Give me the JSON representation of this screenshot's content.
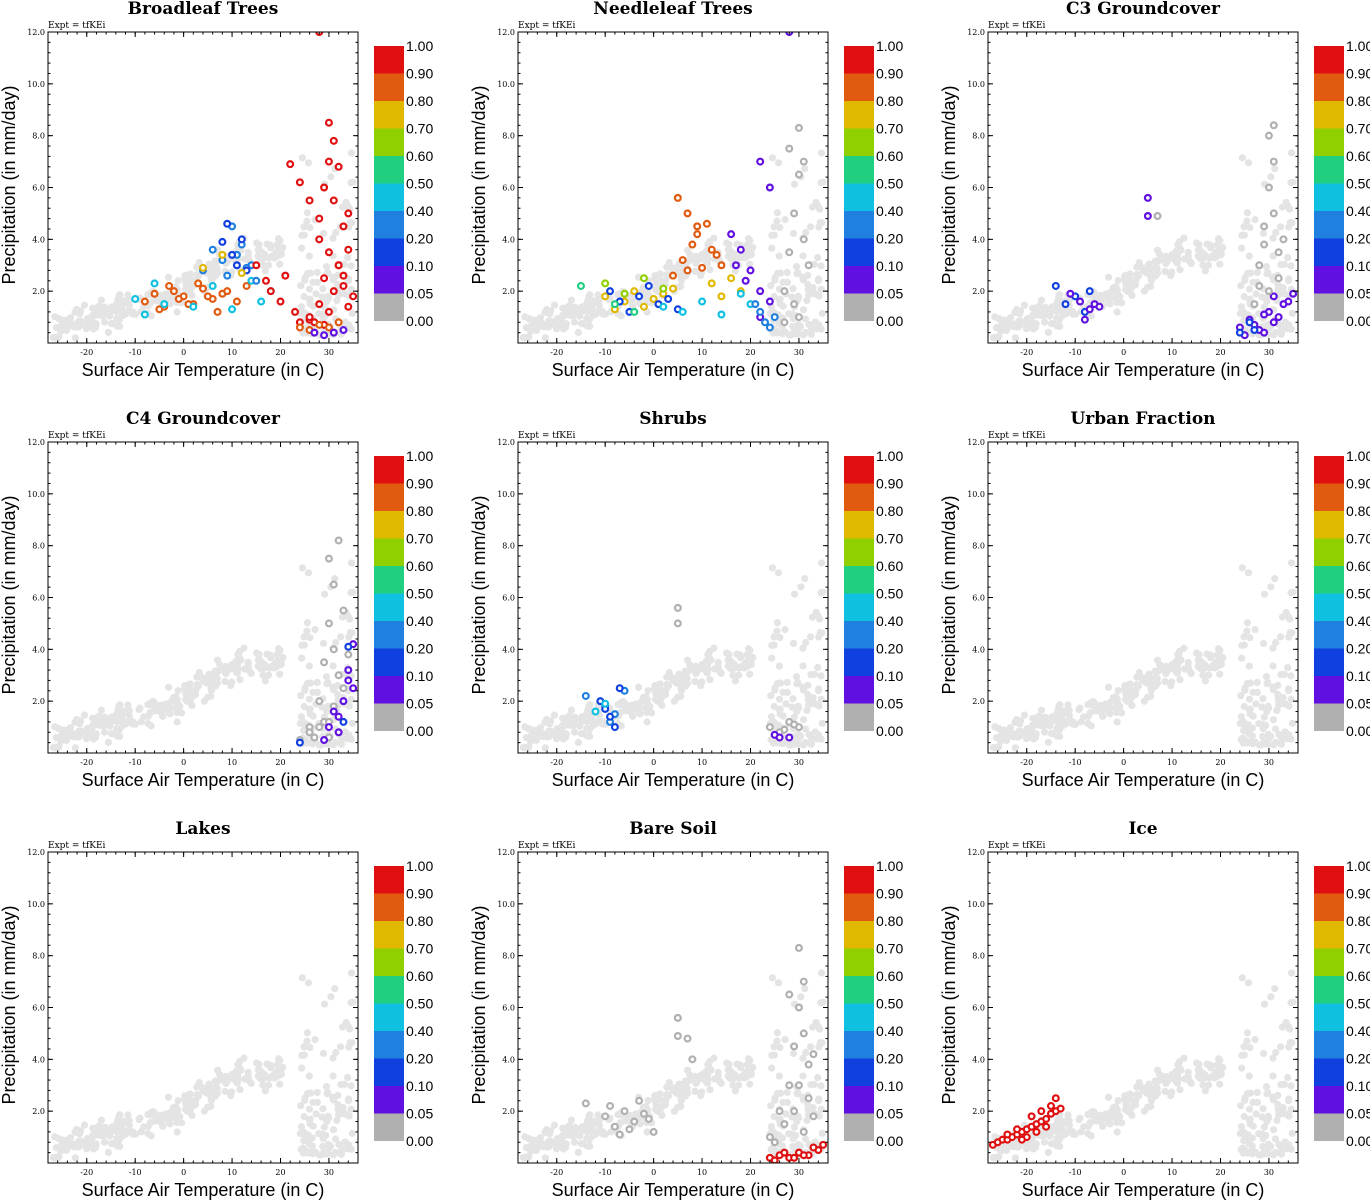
{
  "chart_data": {
    "type": "scatter",
    "expt_label": "Expt = tfKEi",
    "xlabel": "Surface Air Temperature (in C)",
    "ylabel": "Precipitation (in mm/day)",
    "xlim": [
      -28,
      36
    ],
    "ylim": [
      0,
      12
    ],
    "xticks": [
      -20,
      -10,
      0,
      10,
      20,
      30
    ],
    "yticks": [
      "2.0",
      "4.0",
      "6.0",
      "8.0",
      "10.0",
      "12.0"
    ],
    "colorbar": {
      "labels": [
        "1.00",
        "0.90",
        "0.80",
        "0.70",
        "0.60",
        "0.50",
        "0.40",
        "0.20",
        "0.10",
        "0.05",
        "0.00"
      ],
      "colors": [
        "#e01010",
        "#e05a10",
        "#e0b800",
        "#90d000",
        "#20d080",
        "#10c0e0",
        "#2080e0",
        "#1040e0",
        "#6010e0",
        "#b0b0b0",
        "#ffffff"
      ]
    },
    "background_color": "#e4e4e4",
    "panels": [
      {
        "title": "Broadleaf Trees",
        "points": [
          {
            "x": [
              -8,
              -6,
              -4,
              -2,
              0,
              2,
              4,
              6,
              8
            ],
            "y": [
              1.6,
              1.9,
              1.4,
              2.0,
              1.8,
              1.5,
              2.1,
              1.7,
              1.9
            ],
            "color": "#e05a10"
          },
          {
            "x": [
              -5,
              -3,
              -1,
              1,
              3,
              5,
              7,
              9,
              11,
              13
            ],
            "y": [
              1.3,
              2.2,
              1.7,
              1.5,
              2.3,
              1.8,
              1.2,
              2.0,
              1.6,
              2.2
            ],
            "color": "#e05a10"
          },
          {
            "x": [
              -10,
              -8,
              -6,
              -4,
              2,
              6,
              10,
              14,
              16,
              18
            ],
            "y": [
              1.7,
              1.1,
              2.3,
              1.5,
              1.4,
              2.2,
              1.3,
              2.4,
              1.6,
              2.0
            ],
            "color": "#10c0e0"
          },
          {
            "x": [
              6,
              8,
              10,
              12,
              14,
              4,
              9,
              11,
              13,
              15
            ],
            "y": [
              3.6,
              3.2,
              4.5,
              3.8,
              3.0,
              2.8,
              2.6,
              3.4,
              2.9,
              2.4
            ],
            "color": "#2080e0"
          },
          {
            "x": [
              8,
              9,
              10,
              11,
              12,
              13
            ],
            "y": [
              3.9,
              4.6,
              3.4,
              3.0,
              4.0,
              2.8
            ],
            "color": "#1040e0"
          },
          {
            "x": [
              15,
              17,
              18,
              20,
              21,
              23,
              24,
              26
            ],
            "y": [
              3.0,
              2.4,
              2.0,
              1.6,
              2.6,
              1.2,
              0.8,
              0.9
            ],
            "color": "#e01010"
          },
          {
            "x": [
              28,
              29,
              30,
              30,
              31,
              31,
              32,
              32,
              33,
              33,
              34,
              34,
              35
            ],
            "y": [
              4.0,
              6.0,
              7.0,
              8.5,
              5.5,
              7.8,
              3.0,
              6.8,
              4.5,
              2.2,
              5.0,
              3.6,
              1.8
            ],
            "color": "#e01010"
          },
          {
            "x": [
              26,
              28,
              29,
              30,
              31,
              32,
              33,
              34,
              27,
              29
            ],
            "y": [
              1.0,
              1.5,
              2.5,
              1.2,
              2.0,
              3.0,
              2.6,
              1.4,
              0.8,
              0.7
            ],
            "color": "#e01010"
          },
          {
            "x": [
              22,
              24,
              26,
              28,
              30
            ],
            "y": [
              6.9,
              6.2,
              5.5,
              4.8,
              3.5
            ],
            "color": "#e01010"
          },
          {
            "x": [
              24,
              26,
              28,
              30,
              32
            ],
            "y": [
              0.6,
              0.5,
              0.7,
              0.6,
              0.8
            ],
            "color": "#e05a10"
          },
          {
            "x": [
              27,
              29,
              31,
              33
            ],
            "y": [
              0.4,
              0.3,
              0.4,
              0.5
            ],
            "color": "#6010e0"
          },
          {
            "x": [
              4,
              8,
              12
            ],
            "y": [
              2.9,
              3.4,
              2.7
            ],
            "color": "#e0b800"
          },
          {
            "x": [
              28
            ],
            "y": [
              12.0
            ],
            "color": "#e01010"
          }
        ]
      },
      {
        "title": "Needleleaf Trees",
        "points": [
          {
            "x": [
              -10,
              -8,
              -6,
              -4,
              -2,
              0,
              2,
              4,
              12,
              14,
              16,
              18
            ],
            "y": [
              1.8,
              1.3,
              1.6,
              2.0,
              1.4,
              1.7,
              1.9,
              2.1,
              2.3,
              1.8,
              2.5,
              2.0
            ],
            "color": "#e0b800"
          },
          {
            "x": [
              -9,
              -7,
              -5,
              -3,
              -1,
              1,
              3,
              5
            ],
            "y": [
              2.0,
              1.6,
              1.2,
              1.8,
              2.2,
              1.5,
              1.7,
              1.3
            ],
            "color": "#1040e0"
          },
          {
            "x": [
              6,
              8,
              10,
              12,
              14,
              4,
              9,
              11,
              7,
              13
            ],
            "y": [
              3.2,
              3.8,
              2.9,
              3.6,
              3.0,
              2.6,
              4.2,
              4.6,
              2.8,
              3.4
            ],
            "color": "#e05a10"
          },
          {
            "x": [
              5,
              7,
              9
            ],
            "y": [
              5.6,
              5.0,
              4.5
            ],
            "color": "#e05a10"
          },
          {
            "x": [
              -10,
              -6,
              -2,
              2
            ],
            "y": [
              2.3,
              1.9,
              2.5,
              2.1
            ],
            "color": "#90d000"
          },
          {
            "x": [
              -15,
              -8,
              -4
            ],
            "y": [
              2.2,
              1.5,
              1.2
            ],
            "color": "#20d080"
          },
          {
            "x": [
              2,
              6,
              10,
              14,
              18,
              20
            ],
            "y": [
              1.4,
              1.2,
              1.6,
              1.1,
              1.9,
              1.5
            ],
            "color": "#10c0e0"
          },
          {
            "x": [
              16,
              18,
              20,
              22,
              24,
              22,
              19,
              17
            ],
            "y": [
              4.2,
              3.6,
              2.8,
              2.0,
              1.6,
              1.0,
              2.4,
              3.0
            ],
            "color": "#6010e0"
          },
          {
            "x": [
              22,
              23,
              24,
              21,
              25
            ],
            "y": [
              1.2,
              0.8,
              0.6,
              1.5,
              1.0
            ],
            "color": "#2080e0"
          },
          {
            "x": [
              22,
              24,
              28
            ],
            "y": [
              7.0,
              6.0,
              12.0
            ],
            "color": "#6010e0"
          },
          {
            "x": [
              27,
              28,
              29,
              30,
              30,
              31,
              31,
              32,
              28,
              29,
              27,
              30
            ],
            "y": [
              2.0,
              3.5,
              5.0,
              6.5,
              8.3,
              7.0,
              4.0,
              3.0,
              7.5,
              1.5,
              0.8,
              1.0
            ],
            "color": "#b0b0b0"
          }
        ]
      },
      {
        "title": "C3 Groundcover",
        "points": [
          {
            "x": [
              -14,
              -12,
              -10,
              -8,
              -7
            ],
            "y": [
              2.2,
              1.5,
              1.8,
              1.2,
              2.0
            ],
            "color": "#1040e0"
          },
          {
            "x": [
              -11,
              -9,
              -7,
              -6,
              -5,
              -8
            ],
            "y": [
              1.9,
              1.6,
              1.3,
              1.5,
              1.4,
              0.9
            ],
            "color": "#6010e0"
          },
          {
            "x": [
              5,
              5
            ],
            "y": [
              5.6,
              4.9
            ],
            "color": "#6010e0"
          },
          {
            "x": [
              7
            ],
            "y": [
              4.9
            ],
            "color": "#b0b0b0"
          },
          {
            "x": [
              24,
              26,
              28,
              30,
              32,
              34,
              25,
              27,
              29,
              31,
              33,
              35,
              29,
              31
            ],
            "y": [
              0.6,
              0.9,
              0.5,
              1.2,
              1.0,
              1.6,
              0.3,
              0.7,
              1.1,
              0.8,
              1.5,
              1.9,
              0.4,
              1.8
            ],
            "color": "#6010e0"
          },
          {
            "x": [
              24,
              26,
              27
            ],
            "y": [
              0.4,
              0.8,
              0.5
            ],
            "color": "#1040e0"
          },
          {
            "x": [
              27,
              28,
              29,
              30,
              30,
              31,
              31,
              32,
              32,
              33,
              28,
              30,
              29,
              31
            ],
            "y": [
              1.5,
              3.0,
              4.5,
              6.0,
              8.0,
              7.0,
              5.0,
              3.5,
              2.5,
              4.0,
              2.2,
              2.0,
              3.8,
              8.4
            ],
            "color": "#b0b0b0"
          }
        ]
      },
      {
        "title": "C4 Groundcover",
        "points": [
          {
            "x": [
              26,
              28,
              29,
              30,
              30,
              31,
              31,
              32,
              32,
              33,
              33,
              34,
              29,
              31,
              27
            ],
            "y": [
              1.0,
              2.0,
              3.5,
              5.0,
              7.5,
              6.5,
              4.0,
              3.0,
              8.2,
              2.5,
              5.5,
              3.8,
              1.2,
              1.8,
              0.6
            ],
            "color": "#b0b0b0"
          },
          {
            "x": [
              24,
              26,
              28,
              30,
              30
            ],
            "y": [
              0.5,
              0.8,
              1.0,
              0.6,
              1.2
            ],
            "color": "#b0b0b0"
          },
          {
            "x": [
              30,
              31,
              32,
              33,
              34,
              35,
              34,
              29,
              32,
              35
            ],
            "y": [
              1.0,
              1.6,
              0.8,
              2.0,
              2.8,
              4.2,
              3.2,
              0.5,
              1.4,
              2.5
            ],
            "color": "#6010e0"
          },
          {
            "x": [
              24,
              33,
              34
            ],
            "y": [
              0.4,
              1.2,
              4.1
            ],
            "color": "#1040e0"
          }
        ]
      },
      {
        "title": "Shrubs",
        "points": [
          {
            "x": [
              -14,
              -10,
              -8,
              -6,
              -9
            ],
            "y": [
              2.2,
              1.8,
              1.5,
              2.4,
              1.2
            ],
            "color": "#2080e0"
          },
          {
            "x": [
              -11,
              -9,
              -7,
              -8,
              -10
            ],
            "y": [
              2.0,
              1.4,
              2.5,
              1.0,
              1.7
            ],
            "color": "#1040e0"
          },
          {
            "x": [
              -12,
              -10
            ],
            "y": [
              1.6,
              1.9
            ],
            "color": "#10c0e0"
          },
          {
            "x": [
              5,
              5
            ],
            "y": [
              5.6,
              5.0
            ],
            "color": "#b0b0b0"
          },
          {
            "x": [
              24,
              26,
              28,
              30,
              25,
              27,
              29
            ],
            "y": [
              1.0,
              0.8,
              1.2,
              1.0,
              0.7,
              0.9,
              1.1
            ],
            "color": "#b0b0b0"
          },
          {
            "x": [
              25,
              26,
              28
            ],
            "y": [
              0.7,
              0.6,
              0.6
            ],
            "color": "#6010e0"
          }
        ]
      },
      {
        "title": "Urban Fraction",
        "points": []
      },
      {
        "title": "Lakes",
        "points": []
      },
      {
        "title": "Bare Soil",
        "points": [
          {
            "x": [
              -14,
              -10,
              -8,
              -6,
              -4,
              -2,
              0,
              -9,
              -5,
              -1,
              -7,
              -3
            ],
            "y": [
              2.3,
              1.8,
              1.4,
              2.0,
              1.6,
              1.9,
              1.2,
              2.2,
              1.3,
              1.7,
              1.1,
              2.4
            ],
            "color": "#b0b0b0"
          },
          {
            "x": [
              5,
              5,
              7,
              8
            ],
            "y": [
              5.6,
              4.9,
              4.8,
              4.0
            ],
            "color": "#b0b0b0"
          },
          {
            "x": [
              24,
              26,
              28,
              29,
              30,
              30,
              31,
              31,
              32,
              32,
              33,
              28,
              30,
              27,
              29,
              31,
              33,
              25
            ],
            "y": [
              1.0,
              2.0,
              3.0,
              4.5,
              6.0,
              8.3,
              7.0,
              5.0,
              3.8,
              2.5,
              4.2,
              6.5,
              3.0,
              1.5,
              2.0,
              1.2,
              1.8,
              0.8
            ],
            "color": "#b0b0b0"
          },
          {
            "x": [
              24,
              26,
              28,
              30,
              32,
              34,
              25,
              27,
              29,
              31,
              33,
              35
            ],
            "y": [
              0.2,
              0.3,
              0.2,
              0.4,
              0.3,
              0.5,
              0.1,
              0.4,
              0.2,
              0.3,
              0.6,
              0.7
            ],
            "color": "#e01010"
          }
        ]
      },
      {
        "title": "Ice",
        "points": [
          {
            "x": [
              -27,
              -26,
              -25,
              -24,
              -23,
              -22,
              -21,
              -20,
              -19,
              -18,
              -17,
              -16,
              -15,
              -14,
              -13,
              -20,
              -18,
              -16,
              -14,
              -22,
              -24,
              -19,
              -17,
              -15,
              -21
            ],
            "y": [
              0.7,
              0.8,
              0.9,
              0.9,
              1.0,
              1.1,
              1.2,
              1.3,
              1.4,
              1.5,
              1.6,
              1.7,
              1.9,
              2.0,
              2.1,
              1.0,
              1.2,
              1.4,
              2.5,
              1.3,
              1.1,
              1.8,
              2.0,
              2.2,
              0.9
            ],
            "color": "#e01010"
          }
        ]
      }
    ]
  }
}
